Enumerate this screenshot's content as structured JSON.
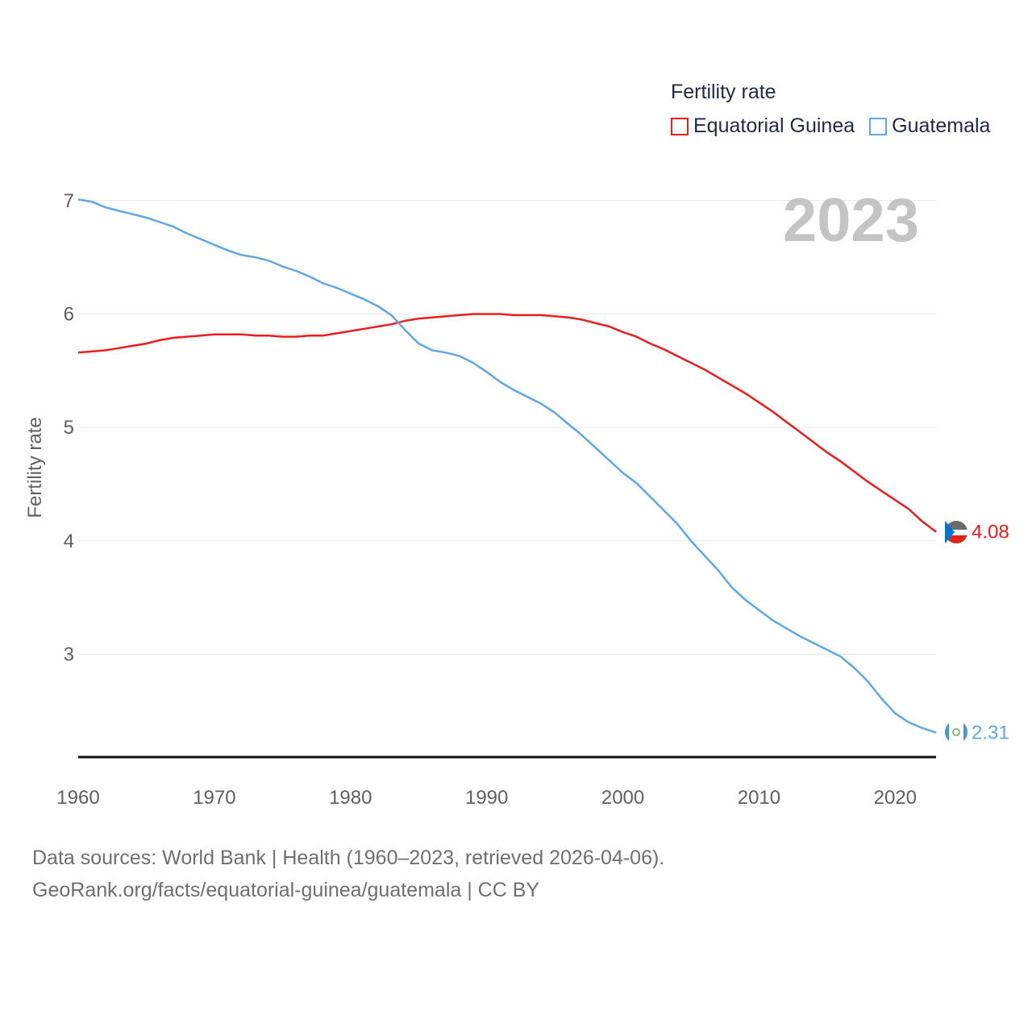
{
  "legend": {
    "title": "Fertility rate",
    "items": [
      {
        "label": "Equatorial Guinea",
        "color": "#ee1c1c"
      },
      {
        "label": "Guatemala",
        "color": "#5fa6e6"
      }
    ]
  },
  "footer": {
    "line1": "Data sources: World Bank | Health (1960–2023, retrieved 2026-04-06).",
    "line2": "GeoRank.org/facts/equatorial-guinea/guatemala | CC BY"
  },
  "chart_data": {
    "type": "line",
    "title": "Fertility rate",
    "year_label": "2023",
    "xlabel": "",
    "ylabel": "Fertility rate",
    "xlim": [
      1960,
      2023
    ],
    "ylim": [
      2.1,
      7
    ],
    "x_ticks": [
      1960,
      1970,
      1980,
      1990,
      2000,
      2010,
      2020
    ],
    "y_ticks": [
      3,
      4,
      5,
      6,
      7
    ],
    "grid": true,
    "x": [
      1960,
      1961,
      1962,
      1963,
      1964,
      1965,
      1966,
      1967,
      1968,
      1969,
      1970,
      1971,
      1972,
      1973,
      1974,
      1975,
      1976,
      1977,
      1978,
      1979,
      1980,
      1981,
      1982,
      1983,
      1984,
      1985,
      1986,
      1987,
      1988,
      1989,
      1990,
      1991,
      1992,
      1993,
      1994,
      1995,
      1996,
      1997,
      1998,
      1999,
      2000,
      2001,
      2002,
      2003,
      2004,
      2005,
      2006,
      2007,
      2008,
      2009,
      2010,
      2011,
      2012,
      2013,
      2014,
      2015,
      2016,
      2017,
      2018,
      2019,
      2020,
      2021,
      2022,
      2023
    ],
    "series": [
      {
        "name": "Equatorial Guinea",
        "color": "#ee1c1c",
        "end_label": "4.08",
        "values": [
          5.66,
          5.67,
          5.68,
          5.7,
          5.72,
          5.74,
          5.77,
          5.79,
          5.8,
          5.81,
          5.82,
          5.82,
          5.82,
          5.81,
          5.81,
          5.8,
          5.8,
          5.81,
          5.81,
          5.83,
          5.85,
          5.87,
          5.89,
          5.91,
          5.94,
          5.96,
          5.97,
          5.98,
          5.99,
          6.0,
          6.0,
          6.0,
          5.99,
          5.99,
          5.99,
          5.98,
          5.97,
          5.95,
          5.92,
          5.89,
          5.84,
          5.8,
          5.74,
          5.69,
          5.63,
          5.57,
          5.51,
          5.44,
          5.37,
          5.3,
          5.22,
          5.14,
          5.05,
          4.96,
          4.87,
          4.78,
          4.7,
          4.61,
          4.52,
          4.44,
          4.36,
          4.28,
          4.17,
          4.08
        ]
      },
      {
        "name": "Guatemala",
        "color": "#5fa6e6",
        "end_label": "2.31",
        "values": [
          7.01,
          6.99,
          6.94,
          6.91,
          6.88,
          6.85,
          6.81,
          6.77,
          6.71,
          6.66,
          6.61,
          6.56,
          6.52,
          6.5,
          6.47,
          6.42,
          6.38,
          6.33,
          6.27,
          6.23,
          6.18,
          6.13,
          6.07,
          5.99,
          5.86,
          5.74,
          5.68,
          5.66,
          5.63,
          5.57,
          5.49,
          5.4,
          5.33,
          5.27,
          5.21,
          5.13,
          5.03,
          4.93,
          4.82,
          4.71,
          4.6,
          4.51,
          4.39,
          4.27,
          4.15,
          4.0,
          3.87,
          3.74,
          3.59,
          3.48,
          3.39,
          3.3,
          3.23,
          3.16,
          3.1,
          3.04,
          2.98,
          2.88,
          2.76,
          2.61,
          2.48,
          2.4,
          2.35,
          2.31
        ]
      }
    ]
  }
}
